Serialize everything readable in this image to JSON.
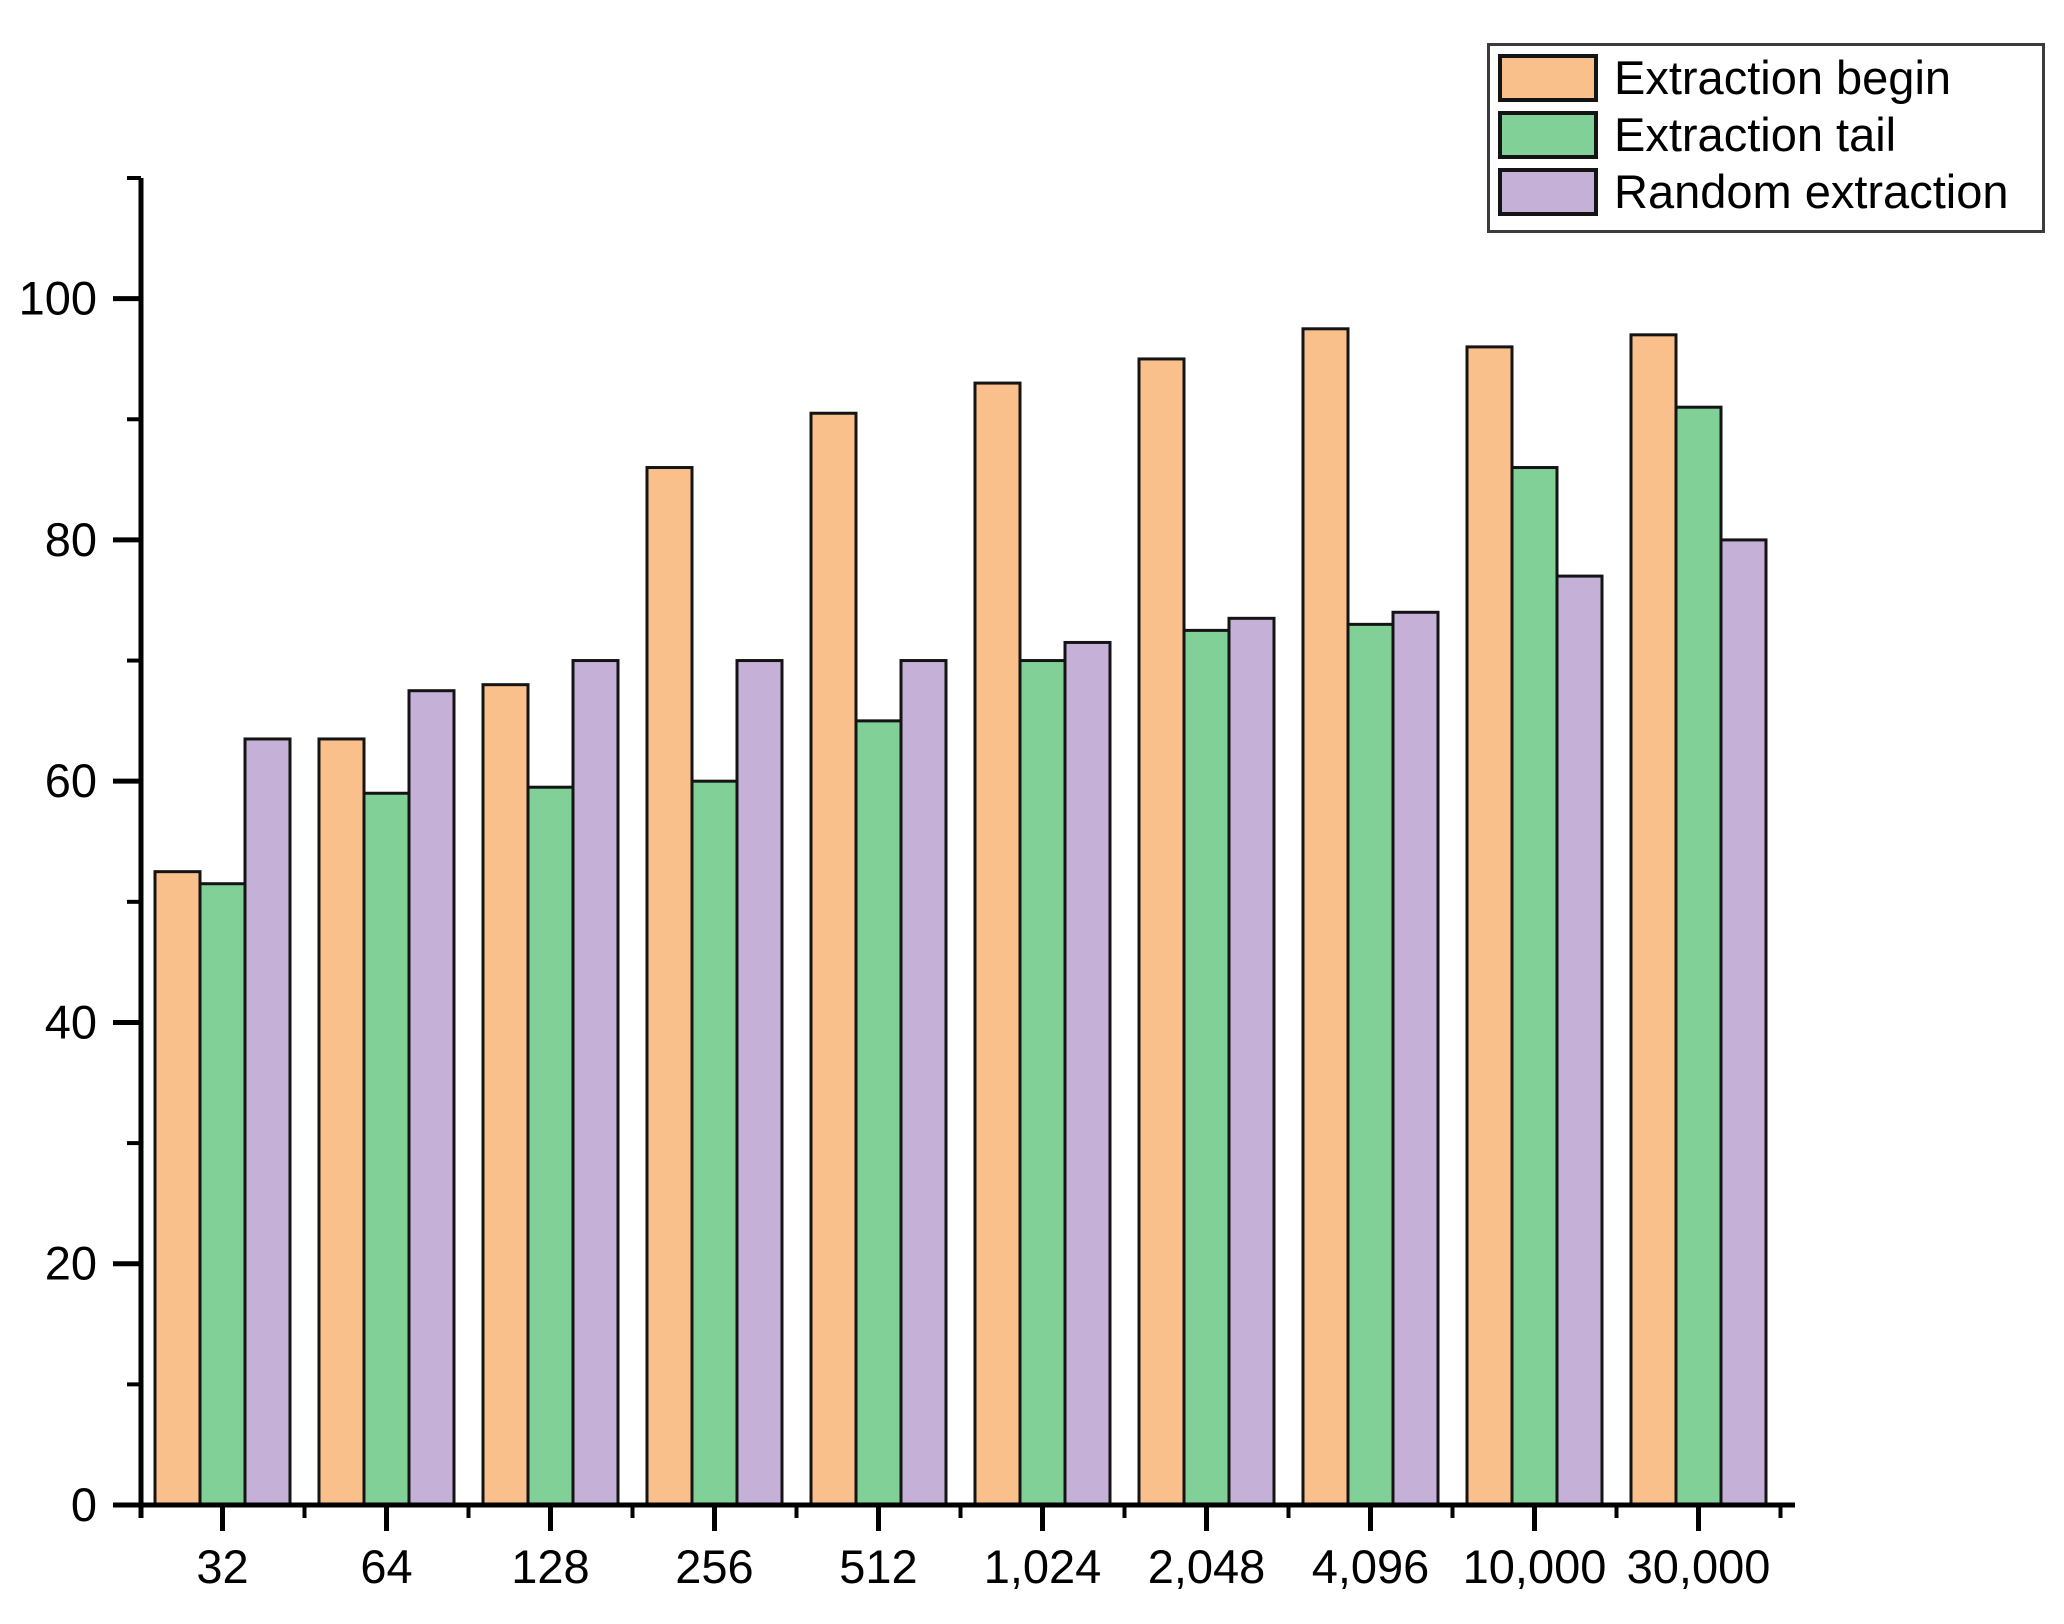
{
  "chart_data": {
    "type": "bar",
    "title": "",
    "xlabel": "",
    "ylabel": "",
    "categories": [
      "32",
      "64",
      "128",
      "256",
      "512",
      "1,024",
      "2,048",
      "4,096",
      "10,000",
      "30,000"
    ],
    "series": [
      {
        "name": "Extraction begin",
        "color": "#FAC08C",
        "values": [
          52.5,
          63.5,
          68,
          86,
          90.5,
          93,
          95,
          97.5,
          96,
          97
        ]
      },
      {
        "name": "Extraction tail",
        "color": "#80D098",
        "values": [
          51.5,
          59,
          59.5,
          60,
          65,
          70,
          72.5,
          73,
          86,
          91
        ]
      },
      {
        "name": "Random extraction",
        "color": "#C5B0D8",
        "values": [
          63.5,
          67.5,
          70,
          70,
          70,
          71.5,
          73.5,
          74,
          77,
          80
        ]
      }
    ],
    "ylim": [
      0,
      110
    ],
    "y_major_ticks": [
      0,
      20,
      40,
      60,
      80,
      100
    ],
    "y_minor_ticks": [
      10,
      30,
      50,
      70,
      90,
      110
    ],
    "grid": false,
    "legend_position": "top-right",
    "bar_border_color": "#141414",
    "axis_color": "#000000",
    "background": "#ffffff"
  }
}
